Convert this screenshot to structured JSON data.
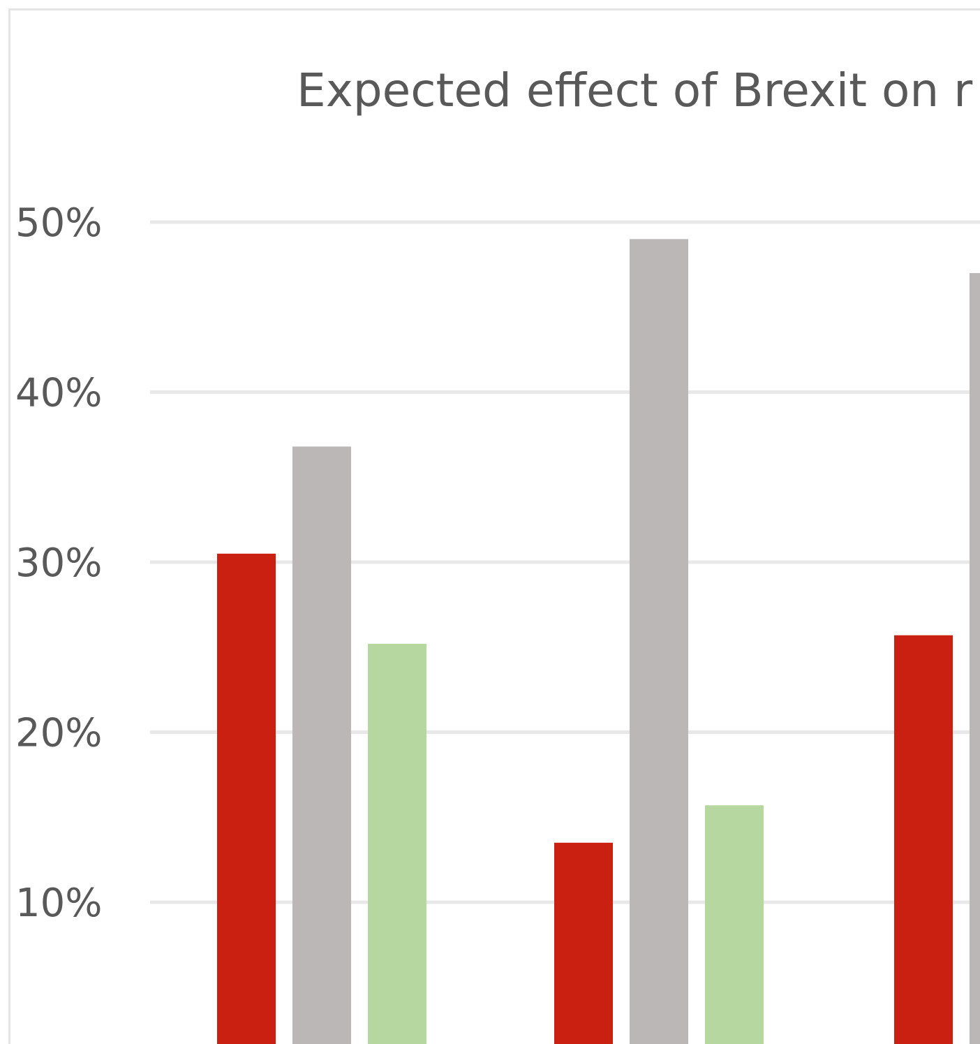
{
  "chart_data": {
    "type": "bar",
    "title": "Expected effect of Brexit on r",
    "xlabel": "",
    "ylabel": "",
    "ylim": [
      0.025,
      0.5
    ],
    "yticks": [
      {
        "value": 0.5,
        "label": "50%"
      },
      {
        "value": 0.4,
        "label": "40%"
      },
      {
        "value": 0.3,
        "label": "30%"
      },
      {
        "value": 0.2,
        "label": "20%"
      },
      {
        "value": 0.1,
        "label": "10%"
      }
    ],
    "grid": true,
    "legend": "none",
    "categories": [
      "",
      "",
      ""
    ],
    "series": [
      {
        "color": "#c92012",
        "values": [
          0.305,
          0.135,
          0.257
        ]
      },
      {
        "color": "#bbb7b6",
        "values": [
          0.368,
          0.49,
          0.47
        ]
      },
      {
        "color": "#b6d7a0",
        "values": [
          0.252,
          0.157,
          null
        ]
      }
    ]
  }
}
